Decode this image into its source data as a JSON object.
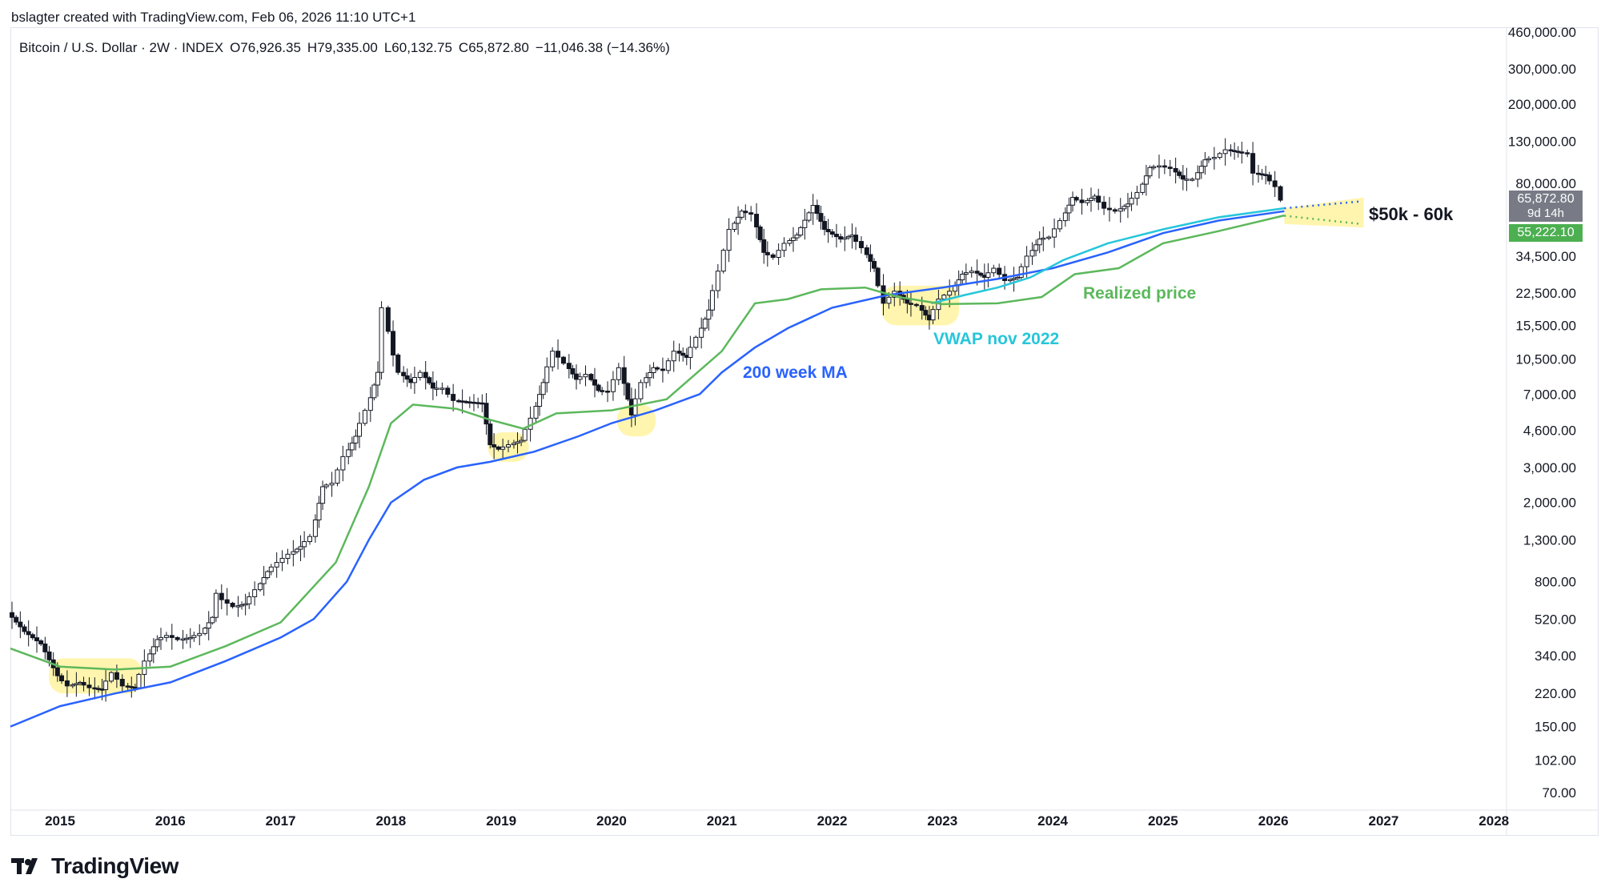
{
  "header": {
    "created_text": "bslagter created with TradingView.com, Feb 06, 2026 11:10 UTC+1"
  },
  "legend": {
    "symbol": "Bitcoin / U.S. Dollar · 2W · INDEX",
    "open": "O76,926.35",
    "high": "H79,335.00",
    "low": "L60,132.75",
    "close": "C65,872.80",
    "change": "−11,046.38 (−14.36%)"
  },
  "price_tags": {
    "last_price": "65,872.80",
    "countdown": "9d 14h",
    "realized_price": "55,222.10",
    "last_price_color": "#787b86",
    "realized_color": "#4caf50"
  },
  "annotations": {
    "ma200": "200 week MA",
    "vwap": "VWAP nov 2022",
    "realized": "Realized price",
    "target": "$50k - 60k"
  },
  "footer": {
    "brand": "TradingView"
  },
  "colors": {
    "ma200": "#2962ff",
    "vwap": "#26c6da",
    "realized": "#5cb85c",
    "highlight": "#fff3a0",
    "candle_up": "#ffffff",
    "candle_down": "#131722"
  },
  "chart_data": {
    "type": "line",
    "scale": "log",
    "y_ticks": [
      "460,000.00",
      "300,000.00",
      "200,000.00",
      "130,000.00",
      "80,000.00",
      "34,500.00",
      "22,500.00",
      "15,500.00",
      "10,500.00",
      "7,000.00",
      "4,600.00",
      "3,000.00",
      "2,000.00",
      "1,300.00",
      "800.00",
      "520.00",
      "340.00",
      "220.00",
      "150.00",
      "102.00",
      "70.00"
    ],
    "x_ticks": [
      "2015",
      "2016",
      "2017",
      "2018",
      "2019",
      "2020",
      "2021",
      "2022",
      "2023",
      "2024",
      "2025",
      "2026",
      "2027",
      "2028"
    ],
    "price": [
      [
        2014.55,
        560
      ],
      [
        2014.7,
        450
      ],
      [
        2014.85,
        390
      ],
      [
        2015.0,
        270
      ],
      [
        2015.1,
        240
      ],
      [
        2015.2,
        250
      ],
      [
        2015.3,
        235
      ],
      [
        2015.4,
        230
      ],
      [
        2015.5,
        280
      ],
      [
        2015.6,
        240
      ],
      [
        2015.7,
        235
      ],
      [
        2015.8,
        320
      ],
      [
        2015.9,
        410
      ],
      [
        2016.0,
        430
      ],
      [
        2016.1,
        410
      ],
      [
        2016.2,
        420
      ],
      [
        2016.3,
        440
      ],
      [
        2016.4,
        530
      ],
      [
        2016.45,
        700
      ],
      [
        2016.5,
        650
      ],
      [
        2016.6,
        600
      ],
      [
        2016.7,
        620
      ],
      [
        2016.8,
        730
      ],
      [
        2016.9,
        900
      ],
      [
        2017.0,
        1000
      ],
      [
        2017.1,
        1100
      ],
      [
        2017.2,
        1200
      ],
      [
        2017.3,
        1350
      ],
      [
        2017.4,
        2400
      ],
      [
        2017.5,
        2500
      ],
      [
        2017.6,
        3400
      ],
      [
        2017.7,
        4300
      ],
      [
        2017.8,
        5800
      ],
      [
        2017.9,
        9000
      ],
      [
        2017.96,
        19000
      ],
      [
        2018.05,
        11000
      ],
      [
        2018.1,
        9000
      ],
      [
        2018.2,
        8000
      ],
      [
        2018.3,
        9000
      ],
      [
        2018.4,
        7500
      ],
      [
        2018.5,
        7500
      ],
      [
        2018.6,
        6500
      ],
      [
        2018.7,
        6400
      ],
      [
        2018.85,
        6300
      ],
      [
        2018.92,
        3900
      ],
      [
        2019.0,
        3700
      ],
      [
        2019.1,
        3900
      ],
      [
        2019.2,
        4100
      ],
      [
        2019.3,
        5300
      ],
      [
        2019.4,
        8000
      ],
      [
        2019.5,
        11500
      ],
      [
        2019.6,
        10000
      ],
      [
        2019.7,
        8300
      ],
      [
        2019.8,
        8800
      ],
      [
        2019.9,
        7300
      ],
      [
        2020.0,
        7200
      ],
      [
        2020.1,
        9500
      ],
      [
        2020.2,
        5500
      ],
      [
        2020.3,
        8000
      ],
      [
        2020.4,
        9500
      ],
      [
        2020.5,
        9200
      ],
      [
        2020.6,
        11500
      ],
      [
        2020.7,
        10700
      ],
      [
        2020.8,
        13500
      ],
      [
        2020.9,
        18500
      ],
      [
        2021.0,
        29000
      ],
      [
        2021.1,
        47000
      ],
      [
        2021.2,
        58000
      ],
      [
        2021.3,
        56000
      ],
      [
        2021.4,
        36000
      ],
      [
        2021.5,
        34000
      ],
      [
        2021.6,
        40000
      ],
      [
        2021.7,
        44000
      ],
      [
        2021.85,
        62000
      ],
      [
        2021.95,
        47000
      ],
      [
        2022.1,
        42000
      ],
      [
        2022.2,
        44000
      ],
      [
        2022.3,
        38000
      ],
      [
        2022.4,
        30000
      ],
      [
        2022.5,
        20000
      ],
      [
        2022.6,
        23000
      ],
      [
        2022.7,
        20000
      ],
      [
        2022.8,
        19500
      ],
      [
        2022.9,
        16500
      ],
      [
        2023.0,
        21000
      ],
      [
        2023.1,
        23000
      ],
      [
        2023.2,
        28000
      ],
      [
        2023.3,
        29000
      ],
      [
        2023.4,
        27000
      ],
      [
        2023.5,
        30000
      ],
      [
        2023.6,
        26000
      ],
      [
        2023.7,
        27000
      ],
      [
        2023.8,
        34500
      ],
      [
        2023.9,
        42000
      ],
      [
        2024.0,
        43000
      ],
      [
        2024.1,
        52000
      ],
      [
        2024.2,
        68000
      ],
      [
        2024.3,
        64000
      ],
      [
        2024.4,
        69000
      ],
      [
        2024.5,
        60000
      ],
      [
        2024.6,
        58000
      ],
      [
        2024.7,
        63000
      ],
      [
        2024.8,
        72000
      ],
      [
        2024.9,
        96000
      ],
      [
        2025.0,
        98000
      ],
      [
        2025.1,
        95000
      ],
      [
        2025.2,
        84000
      ],
      [
        2025.3,
        84000
      ],
      [
        2025.4,
        105000
      ],
      [
        2025.5,
        108000
      ],
      [
        2025.6,
        118000
      ],
      [
        2025.7,
        115000
      ],
      [
        2025.8,
        113000
      ],
      [
        2025.85,
        90000
      ],
      [
        2025.95,
        88000
      ],
      [
        2026.05,
        77000
      ],
      [
        2026.1,
        65872.8
      ]
    ],
    "series": [
      {
        "name": "200 week MA",
        "values": [
          [
            2014.55,
            150
          ],
          [
            2015.0,
            190
          ],
          [
            2015.5,
            220
          ],
          [
            2016.0,
            250
          ],
          [
            2016.5,
            320
          ],
          [
            2017.0,
            420
          ],
          [
            2017.3,
            520
          ],
          [
            2017.6,
            800
          ],
          [
            2017.8,
            1300
          ],
          [
            2018.0,
            2000
          ],
          [
            2018.3,
            2600
          ],
          [
            2018.6,
            3000
          ],
          [
            2018.9,
            3200
          ],
          [
            2019.3,
            3600
          ],
          [
            2019.7,
            4300
          ],
          [
            2020.0,
            5000
          ],
          [
            2020.4,
            5800
          ],
          [
            2020.8,
            7000
          ],
          [
            2021.0,
            9000
          ],
          [
            2021.3,
            12000
          ],
          [
            2021.6,
            15000
          ],
          [
            2022.0,
            19000
          ],
          [
            2022.5,
            22000
          ],
          [
            2023.0,
            24000
          ],
          [
            2023.5,
            26500
          ],
          [
            2024.0,
            30000
          ],
          [
            2024.5,
            36000
          ],
          [
            2025.0,
            45000
          ],
          [
            2025.5,
            52000
          ],
          [
            2026.1,
            58000
          ]
        ]
      },
      {
        "name": "VWAP nov 2022",
        "values": [
          [
            2022.9,
            20000
          ],
          [
            2023.2,
            22000
          ],
          [
            2023.5,
            24000
          ],
          [
            2023.8,
            27000
          ],
          [
            2024.1,
            33000
          ],
          [
            2024.5,
            40000
          ],
          [
            2025.0,
            47000
          ],
          [
            2025.5,
            54000
          ],
          [
            2026.1,
            60000
          ]
        ]
      },
      {
        "name": "Realized price",
        "values": [
          [
            2014.55,
            370
          ],
          [
            2015.0,
            300
          ],
          [
            2015.5,
            290
          ],
          [
            2016.0,
            300
          ],
          [
            2016.5,
            380
          ],
          [
            2017.0,
            500
          ],
          [
            2017.5,
            1000
          ],
          [
            2017.8,
            2400
          ],
          [
            2018.0,
            5000
          ],
          [
            2018.2,
            6200
          ],
          [
            2018.6,
            5900
          ],
          [
            2018.9,
            5200
          ],
          [
            2019.2,
            4700
          ],
          [
            2019.5,
            5600
          ],
          [
            2020.0,
            5800
          ],
          [
            2020.5,
            6600
          ],
          [
            2021.0,
            11500
          ],
          [
            2021.3,
            20000
          ],
          [
            2021.6,
            21000
          ],
          [
            2021.9,
            23500
          ],
          [
            2022.3,
            24000
          ],
          [
            2022.6,
            21500
          ],
          [
            2023.0,
            19800
          ],
          [
            2023.5,
            20000
          ],
          [
            2023.9,
            21500
          ],
          [
            2024.2,
            28000
          ],
          [
            2024.6,
            30000
          ],
          [
            2025.0,
            40000
          ],
          [
            2025.5,
            46000
          ],
          [
            2026.1,
            55222.1
          ]
        ]
      }
    ],
    "projection_upper": [
      [
        2026.1,
        60000
      ],
      [
        2026.8,
        65000
      ]
    ],
    "projection_lower": [
      [
        2026.1,
        55000
      ],
      [
        2026.8,
        50000
      ]
    ]
  }
}
